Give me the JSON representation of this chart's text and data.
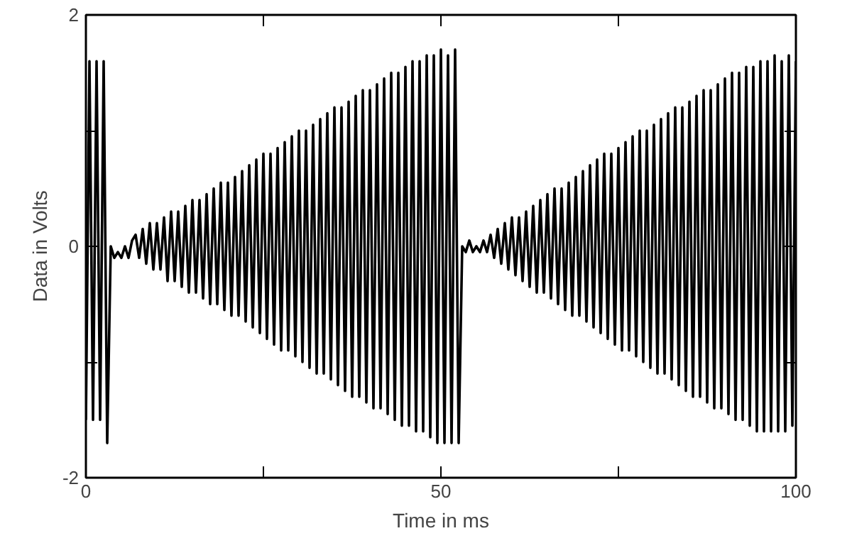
{
  "chart_data": {
    "type": "line",
    "xlabel": "Time in ms",
    "ylabel": "Data in Volts",
    "xlim": [
      0,
      100
    ],
    "ylim": [
      -2,
      2
    ],
    "xticks": [
      0,
      {
        "value": 25,
        "label": null
      },
      50,
      {
        "value": 75,
        "label": null
      },
      100
    ],
    "yticks": [
      -2,
      {
        "value": -1,
        "label": null
      },
      0,
      {
        "value": 1,
        "label": null
      },
      2
    ],
    "grid": false,
    "marker": "none",
    "line_style": "solid",
    "series": [
      {
        "color": "#000000",
        "x": [
          0,
          0.5,
          1,
          1.5,
          2,
          2.5,
          3,
          3.5,
          4,
          4.5,
          5,
          5.5,
          6,
          6.5,
          7,
          7.5,
          8,
          8.5,
          9,
          9.5,
          10,
          10.5,
          11,
          11.5,
          12,
          12.5,
          13,
          13.5,
          14,
          14.5,
          15,
          15.5,
          16,
          16.5,
          17,
          17.5,
          18,
          18.5,
          19,
          19.5,
          20,
          20.5,
          21,
          21.5,
          22,
          22.5,
          23,
          23.5,
          24,
          24.5,
          25,
          25.5,
          26,
          26.5,
          27,
          27.5,
          28,
          28.5,
          29,
          29.5,
          30,
          30.5,
          31,
          31.5,
          32,
          32.5,
          33,
          33.5,
          34,
          34.5,
          35,
          35.5,
          36,
          36.5,
          37,
          37.5,
          38,
          38.5,
          39,
          39.5,
          40,
          40.5,
          41,
          41.5,
          42,
          42.5,
          43,
          43.5,
          44,
          44.5,
          45,
          45.5,
          46,
          46.5,
          47,
          47.5,
          48,
          48.5,
          49,
          49.5,
          50,
          50.5,
          51,
          51.5,
          52,
          52.5,
          53,
          53.5,
          54,
          54.5,
          55,
          55.5,
          56,
          56.5,
          57,
          57.5,
          58,
          58.5,
          59,
          59.5,
          60,
          60.5,
          61,
          61.5,
          62,
          62.5,
          63,
          63.5,
          64,
          64.5,
          65,
          65.5,
          66,
          66.5,
          67,
          67.5,
          68,
          68.5,
          69,
          69.5,
          70,
          70.5,
          71,
          71.5,
          72,
          72.5,
          73,
          73.5,
          74,
          74.5,
          75,
          75.5,
          76,
          76.5,
          77,
          77.5,
          78,
          78.5,
          79,
          79.5,
          80,
          80.5,
          81,
          81.5,
          82,
          82.5,
          83,
          83.5,
          84,
          84.5,
          85,
          85.5,
          86,
          86.5,
          87,
          87.5,
          88,
          88.5,
          89,
          89.5,
          90,
          90.5,
          91,
          91.5,
          92,
          92.5,
          93,
          93.5,
          94,
          94.5,
          95,
          95.5,
          96,
          96.5,
          97,
          97.5,
          98,
          98.5,
          99,
          99.5,
          100
        ],
        "values": [
          -1.5,
          1.6,
          -1.5,
          1.6,
          -1.5,
          1.6,
          -1.7,
          0,
          -0.1,
          -0.05,
          -0.1,
          0,
          -0.1,
          0.05,
          0.1,
          -0.1,
          0.15,
          -0.15,
          0.2,
          -0.2,
          0.2,
          -0.2,
          0.25,
          -0.3,
          0.3,
          -0.3,
          0.3,
          -0.35,
          0.35,
          -0.4,
          0.4,
          -0.4,
          0.4,
          -0.45,
          0.45,
          -0.5,
          0.5,
          -0.5,
          0.55,
          -0.55,
          0.55,
          -0.6,
          0.6,
          -0.6,
          0.65,
          -0.65,
          0.7,
          -0.7,
          0.75,
          -0.75,
          0.8,
          -0.8,
          0.8,
          -0.85,
          0.85,
          -0.9,
          0.9,
          -0.9,
          0.95,
          -0.95,
          1.0,
          -1.0,
          1.0,
          -1.05,
          1.05,
          -1.1,
          1.1,
          -1.1,
          1.15,
          -1.15,
          1.2,
          -1.2,
          1.2,
          -1.25,
          1.25,
          -1.3,
          1.3,
          -1.3,
          1.35,
          -1.35,
          1.35,
          -1.4,
          1.4,
          -1.4,
          1.45,
          -1.45,
          1.5,
          -1.5,
          1.5,
          -1.55,
          1.55,
          -1.55,
          1.6,
          -1.6,
          1.6,
          -1.6,
          1.65,
          -1.65,
          1.65,
          -1.7,
          1.7,
          -1.7,
          1.65,
          -1.7,
          1.7,
          -1.7,
          0,
          -0.05,
          0.05,
          -0.05,
          0,
          -0.05,
          0.05,
          -0.05,
          0.1,
          -0.1,
          0.15,
          -0.15,
          0.2,
          -0.2,
          0.25,
          -0.25,
          0.25,
          -0.3,
          0.3,
          -0.35,
          0.35,
          -0.4,
          0.4,
          -0.4,
          0.45,
          -0.45,
          0.5,
          -0.5,
          0.5,
          -0.55,
          0.55,
          -0.6,
          0.6,
          -0.6,
          0.65,
          -0.65,
          0.7,
          -0.7,
          0.75,
          -0.75,
          0.8,
          -0.8,
          0.8,
          -0.85,
          0.85,
          -0.9,
          0.9,
          -0.9,
          0.95,
          -0.95,
          1.0,
          -1.0,
          1.0,
          -1.05,
          1.05,
          -1.1,
          1.1,
          -1.1,
          1.15,
          -1.15,
          1.2,
          -1.2,
          1.2,
          -1.25,
          1.25,
          -1.3,
          1.3,
          -1.3,
          1.35,
          -1.35,
          1.35,
          -1.4,
          1.4,
          -1.4,
          1.45,
          -1.45,
          1.5,
          -1.5,
          1.5,
          -1.5,
          1.55,
          -1.55,
          1.55,
          -1.6,
          1.6,
          -1.6,
          1.6,
          -1.6,
          1.65,
          -1.6,
          1.6,
          -1.6,
          1.65,
          -1.55,
          1.6
        ]
      }
    ]
  }
}
